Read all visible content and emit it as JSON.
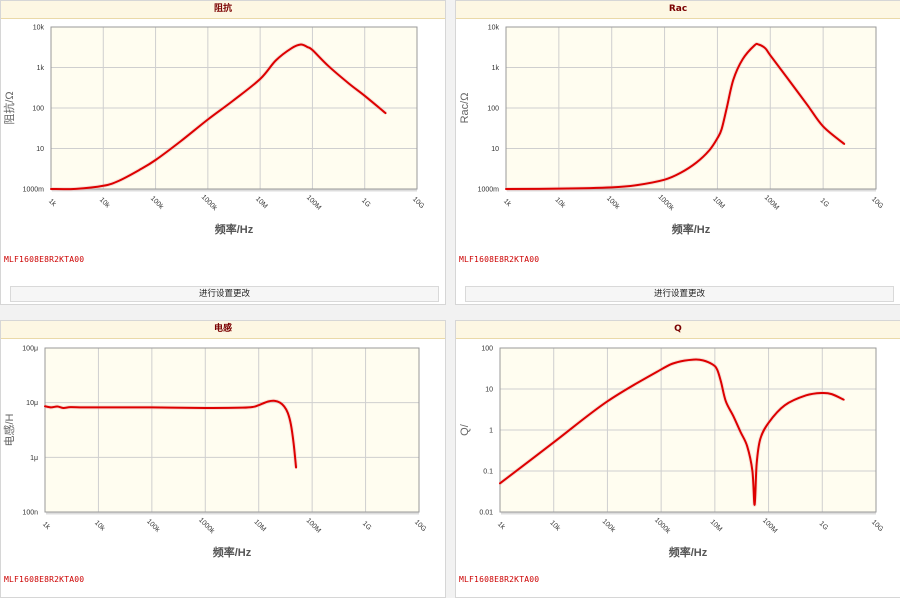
{
  "panels": [
    {
      "title": "阻抗",
      "part_no": "MLF1608E8R2KTA00",
      "button_label": "进行设置更改",
      "chart_data": {
        "type": "line",
        "ylabel": "阻抗/Ω",
        "xlabel": "频率/Hz",
        "x_scale": "log",
        "y_scale": "log",
        "xlim": [
          1000,
          10000000000
        ],
        "ylim": [
          1,
          10000
        ],
        "x_ticks": [
          "1k",
          "10k",
          "100k",
          "1000k",
          "10M",
          "100M",
          "1G",
          "10G"
        ],
        "y_ticks": [
          "1000m",
          "10",
          "100",
          "1k",
          "10k"
        ],
        "line_color": "#dd0000",
        "series": [
          {
            "x": [
              1000,
              3000,
              10000,
              20000,
              50000,
              100000,
              300000,
              1000000,
              3000000,
              10000000,
              20000000,
              40000000,
              60000000,
              80000000,
              100000000,
              200000000,
              500000000,
              1000000000,
              2500000000
            ],
            "y": [
              1.0,
              1.01,
              1.2,
              1.6,
              3.0,
              5.2,
              15,
              52,
              150,
              520,
              1500,
              3000,
              3700,
              3200,
              2700,
              1100,
              400,
              200,
              75
            ]
          }
        ]
      }
    },
    {
      "title": "Rac",
      "part_no": "MLF1608E8R2KTA00",
      "button_label": "进行设置更改",
      "chart_data": {
        "type": "line",
        "ylabel": "Rac/Ω",
        "xlabel": "频率/Hz",
        "x_scale": "log",
        "y_scale": "log",
        "xlim": [
          1000,
          10000000000
        ],
        "ylim": [
          1,
          10000
        ],
        "x_ticks": [
          "1k",
          "10k",
          "100k",
          "1000k",
          "10M",
          "100M",
          "1G",
          "10G"
        ],
        "y_ticks": [
          "1000m",
          "10",
          "100",
          "1k",
          "10k"
        ],
        "line_color": "#dd0000",
        "series": [
          {
            "x": [
              1000,
              10000,
              100000,
              300000,
              1000000,
              2000000,
              4000000,
              7000000,
              10000000,
              12000000,
              15000000,
              20000000,
              30000000,
              50000000,
              60000000,
              80000000,
              100000000,
              200000000,
              500000000,
              1000000000,
              2500000000
            ],
            "y": [
              1.0,
              1.02,
              1.1,
              1.25,
              1.7,
              2.5,
              4.5,
              9,
              18,
              30,
              100,
              500,
              1600,
              3500,
              3700,
              3000,
              2000,
              600,
              120,
              35,
              13
            ]
          }
        ]
      }
    },
    {
      "title": "电感",
      "part_no": "MLF1608E8R2KTA00",
      "chart_data": {
        "type": "line",
        "ylabel": "电感/H",
        "xlabel": "频率/Hz",
        "x_scale": "log",
        "y_scale": "log",
        "xlim": [
          1000,
          10000000000
        ],
        "ylim": [
          1e-07,
          0.0001
        ],
        "x_ticks": [
          "1k",
          "10k",
          "100k",
          "1000k",
          "10M",
          "100M",
          "1G",
          "10G"
        ],
        "y_ticks": [
          "100n",
          "1μ",
          "10μ",
          "100μ"
        ],
        "line_color": "#dd0000",
        "series": [
          {
            "x": [
              1000,
              1300,
              1700,
              2200,
              3000,
              5000,
              10000,
              100000,
              1000000,
              5000000,
              8000000,
              10000000,
              15000000,
              20000000,
              25000000,
              30000000,
              35000000,
              40000000,
              45000000,
              50000000
            ],
            "y": [
              8.6e-06,
              8.2e-06,
              8.5e-06,
              8e-06,
              8.3e-06,
              8.2e-06,
              8.2e-06,
              8.2e-06,
              8e-06,
              8.1e-06,
              8.4e-06,
              9e-06,
              1.05e-05,
              1.08e-05,
              1e-05,
              8.5e-06,
              6.5e-06,
              4e-06,
              1.8e-06,
              6.5e-07
            ]
          }
        ]
      }
    },
    {
      "title": "Q",
      "part_no": "MLF1608E8R2KTA00",
      "chart_data": {
        "type": "line",
        "ylabel": "Q/",
        "xlabel": "频率/Hz",
        "x_scale": "log",
        "y_scale": "log",
        "xlim": [
          1000,
          10000000000
        ],
        "ylim": [
          0.01,
          100
        ],
        "x_ticks": [
          "1k",
          "10k",
          "100k",
          "1000k",
          "10M",
          "100M",
          "1G",
          "10G"
        ],
        "y_ticks": [
          "0.01",
          "0.1",
          "1",
          "10",
          "100"
        ],
        "line_color": "#dd0000",
        "series": [
          {
            "x": [
              1000,
              10000,
              100000,
              1000000,
              2000000,
              4000000,
              6000000,
              9000000,
              11000000,
              13000000,
              16000000,
              22000000,
              30000000,
              40000000,
              50000000,
              55000000,
              60000000,
              70000000,
              100000000,
              200000000,
              500000000,
              1000000000,
              1500000000,
              2500000000
            ],
            "y": [
              0.05,
              0.5,
              5,
              30,
              45,
              52,
              50,
              40,
              30,
              15,
              5,
              2.2,
              0.9,
              0.4,
              0.1,
              0.015,
              0.15,
              0.6,
              1.5,
              4,
              7,
              8,
              7.5,
              5.5
            ]
          }
        ]
      }
    }
  ]
}
